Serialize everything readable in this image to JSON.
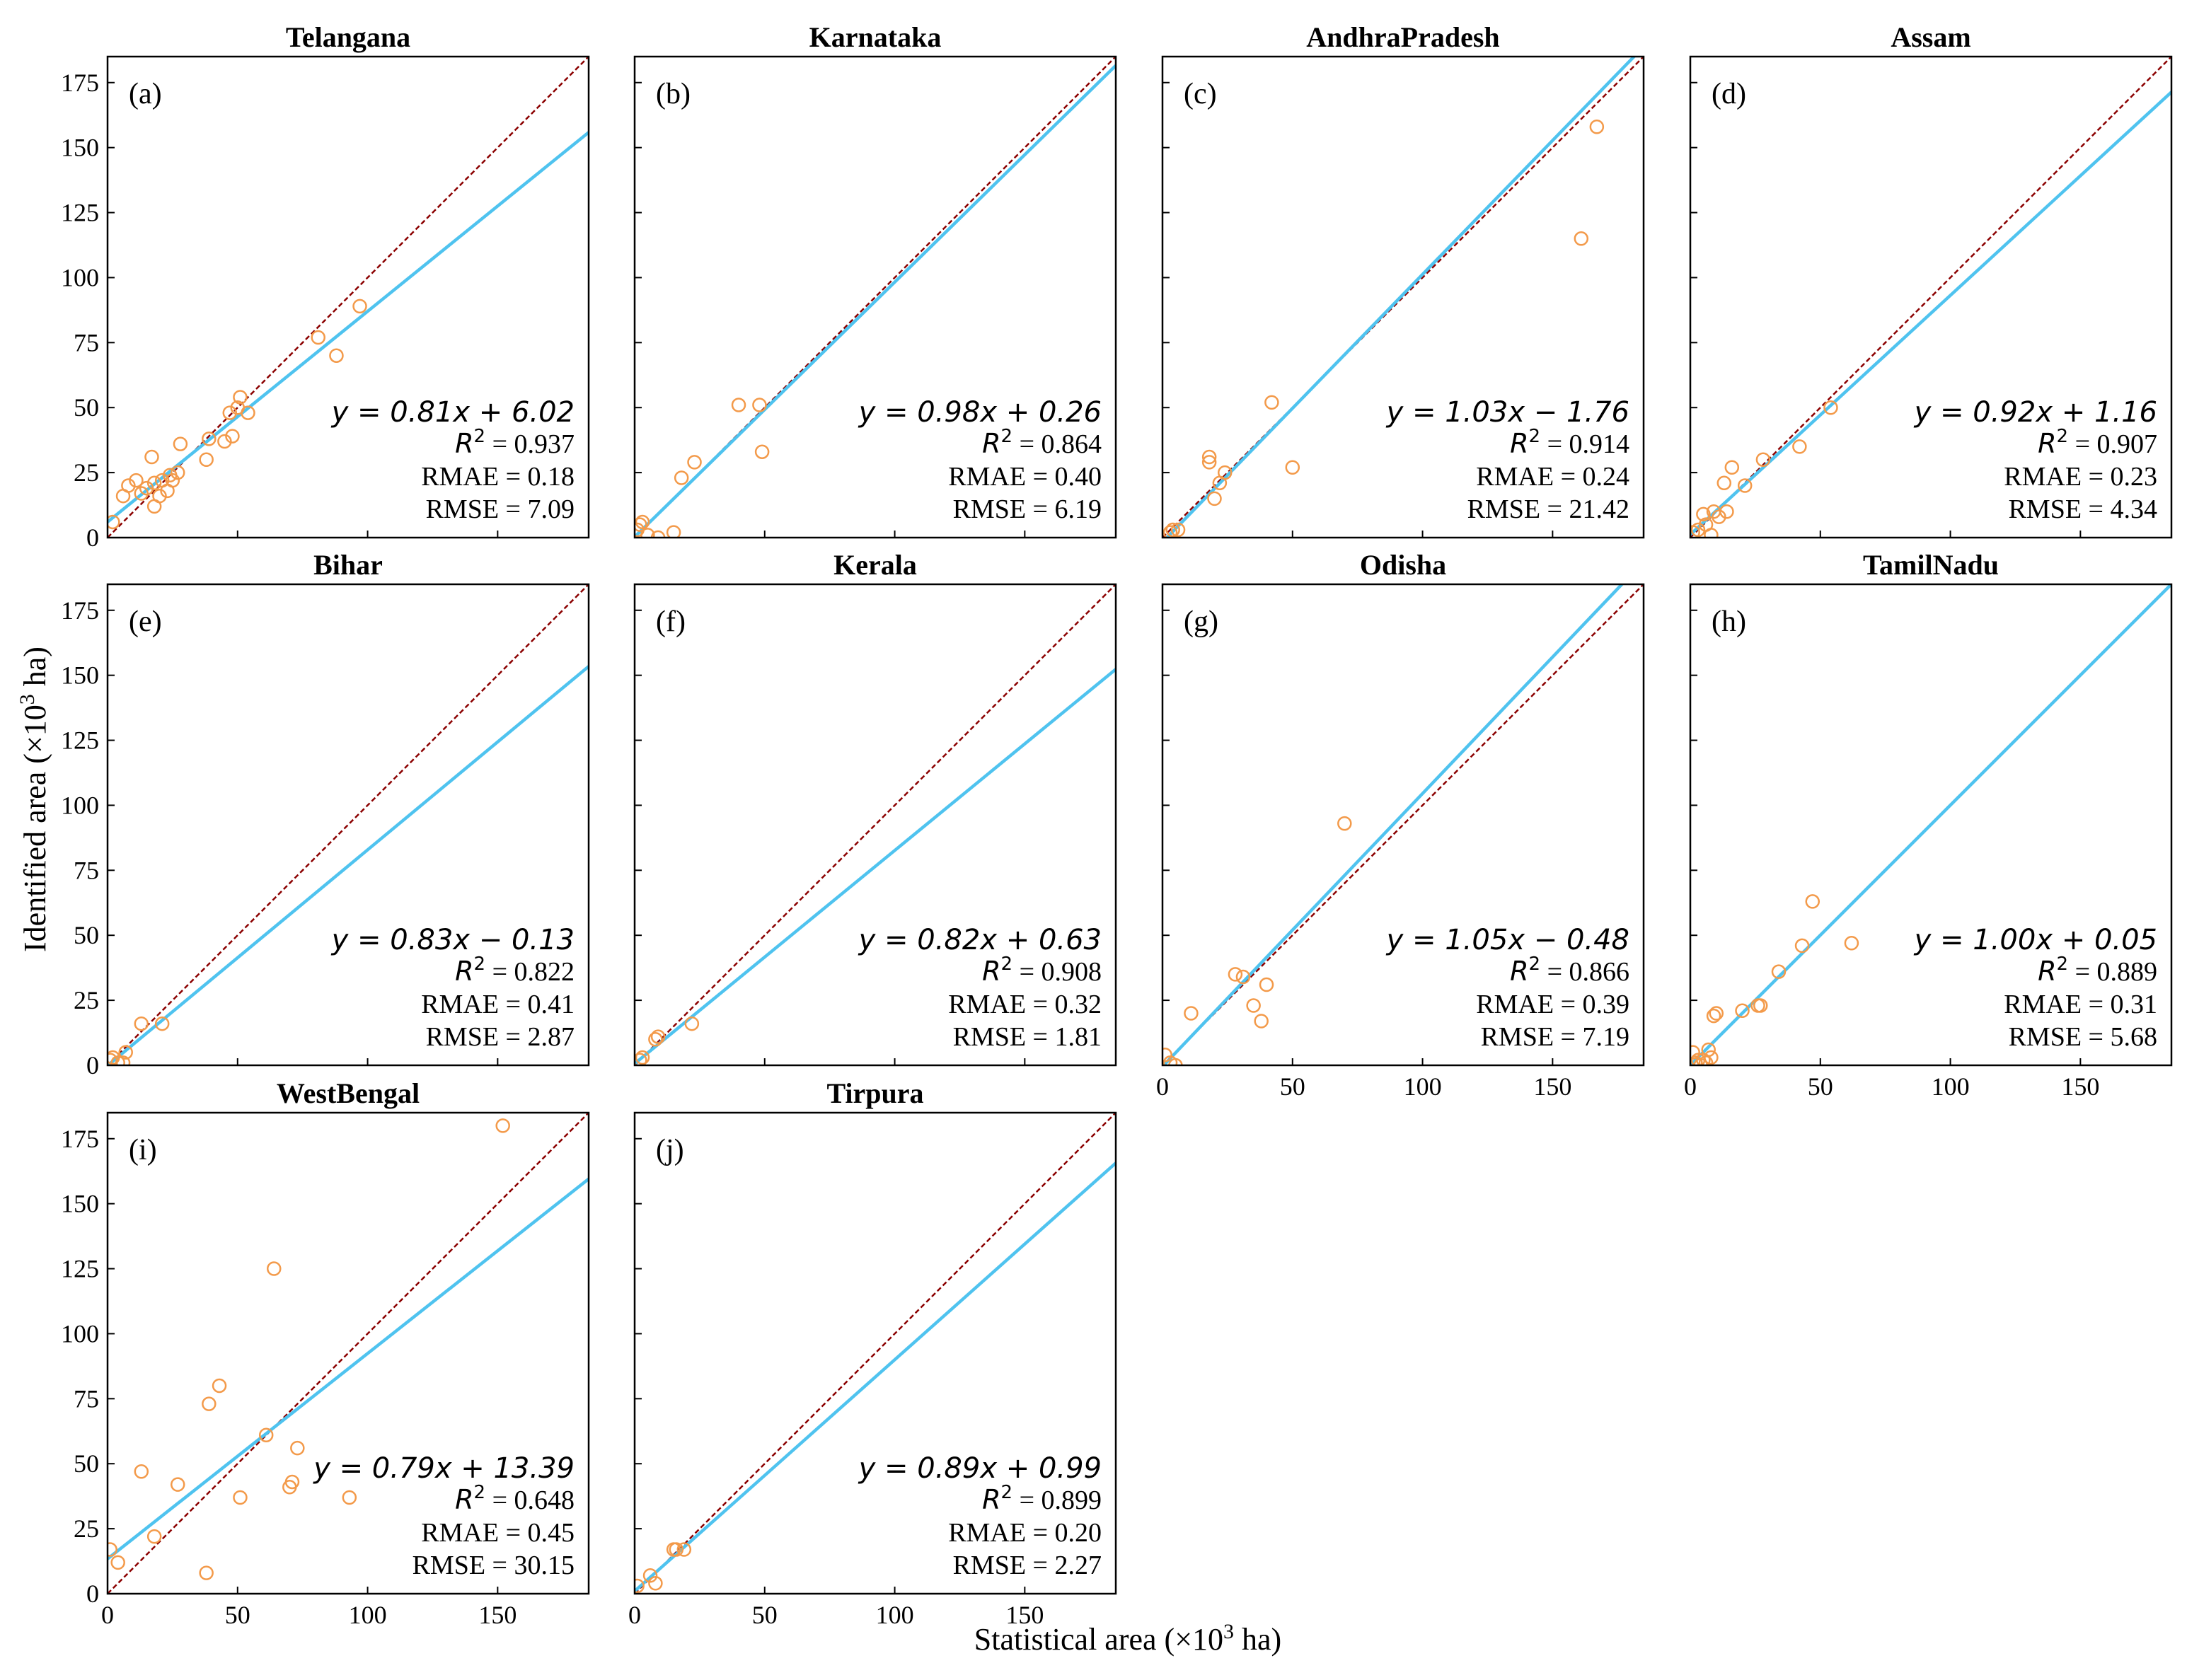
{
  "figure": {
    "xlabel": "Statistical area (×10",
    "xlabel_sup": "3",
    "xlabel_tail": " ha)",
    "ylabel": "Identified area (×10",
    "ylabel_sup": "3",
    "ylabel_tail": " ha)",
    "r2_prefix": "R",
    "r2_sup": "2"
  },
  "chart_data": [
    {
      "type": "scatter",
      "title": "Telangana",
      "panel": "(a)",
      "xlim": [
        0,
        185
      ],
      "ylim": [
        0,
        185
      ],
      "xticks": [
        0,
        50,
        100,
        150
      ],
      "yticks": [
        0,
        25,
        50,
        75,
        100,
        125,
        150,
        175
      ],
      "show_xticklabels": false,
      "show_yticklabels": true,
      "fit": {
        "slope": 0.81,
        "intercept": 6.02
      },
      "equation": "y = 0.81x + 6.02",
      "r2": "= 0.937",
      "rmae": "RMAE = 0.18",
      "rmse": "RMSE = 7.09",
      "points": [
        [
          2,
          6
        ],
        [
          6,
          16
        ],
        [
          8,
          20
        ],
        [
          11,
          22
        ],
        [
          13,
          17
        ],
        [
          15,
          19
        ],
        [
          17,
          31
        ],
        [
          18,
          12
        ],
        [
          18,
          21
        ],
        [
          20,
          16
        ],
        [
          21,
          22
        ],
        [
          23,
          18
        ],
        [
          24,
          24
        ],
        [
          25,
          22
        ],
        [
          27,
          25
        ],
        [
          28,
          36
        ],
        [
          38,
          30
        ],
        [
          39,
          38
        ],
        [
          45,
          37
        ],
        [
          47,
          48
        ],
        [
          48,
          39
        ],
        [
          50,
          50
        ],
        [
          51,
          54
        ],
        [
          54,
          48
        ],
        [
          81,
          77
        ],
        [
          88,
          70
        ],
        [
          97,
          89
        ]
      ]
    },
    {
      "type": "scatter",
      "title": "Karnataka",
      "panel": "(b)",
      "xlim": [
        0,
        185
      ],
      "ylim": [
        0,
        185
      ],
      "xticks": [
        0,
        50,
        100,
        150
      ],
      "yticks": [
        0,
        25,
        50,
        75,
        100,
        125,
        150,
        175
      ],
      "show_xticklabels": false,
      "show_yticklabels": false,
      "fit": {
        "slope": 0.98,
        "intercept": 0.26
      },
      "equation": "y = 0.98x + 0.26",
      "r2": "= 0.864",
      "rmae": "RMAE = 0.40",
      "rmse": "RMSE = 6.19",
      "points": [
        [
          1,
          3
        ],
        [
          2,
          5
        ],
        [
          3,
          6
        ],
        [
          5,
          1
        ],
        [
          9,
          0
        ],
        [
          15,
          2
        ],
        [
          18,
          23
        ],
        [
          23,
          29
        ],
        [
          40,
          51
        ],
        [
          48,
          51
        ],
        [
          49,
          33
        ]
      ]
    },
    {
      "type": "scatter",
      "title": "AndhraPradesh",
      "panel": "(c)",
      "xlim": [
        0,
        185
      ],
      "ylim": [
        0,
        185
      ],
      "xticks": [
        0,
        50,
        100,
        150
      ],
      "yticks": [
        0,
        25,
        50,
        75,
        100,
        125,
        150,
        175
      ],
      "show_xticklabels": false,
      "show_yticklabels": false,
      "fit": {
        "slope": 1.03,
        "intercept": -1.76
      },
      "equation": "y = 1.03x − 1.76",
      "r2": "= 0.914",
      "rmae": "RMAE = 0.24",
      "rmse": "RMSE = 21.42",
      "points": [
        [
          3,
          2
        ],
        [
          4,
          3
        ],
        [
          6,
          3
        ],
        [
          18,
          29
        ],
        [
          18,
          31
        ],
        [
          20,
          15
        ],
        [
          22,
          21
        ],
        [
          24,
          25
        ],
        [
          42,
          52
        ],
        [
          50,
          27
        ],
        [
          161,
          115
        ],
        [
          167,
          158
        ]
      ]
    },
    {
      "type": "scatter",
      "title": "Assam",
      "panel": "(d)",
      "xlim": [
        0,
        185
      ],
      "ylim": [
        0,
        185
      ],
      "xticks": [
        0,
        50,
        100,
        150
      ],
      "yticks": [
        0,
        25,
        50,
        75,
        100,
        125,
        150,
        175
      ],
      "show_xticklabels": false,
      "show_yticklabels": false,
      "fit": {
        "slope": 0.92,
        "intercept": 1.16
      },
      "equation": "y = 0.92x + 1.16",
      "r2": "= 0.907",
      "rmae": "RMAE = 0.23",
      "rmse": "RMSE = 4.34",
      "points": [
        [
          1,
          2
        ],
        [
          3,
          3
        ],
        [
          5,
          9
        ],
        [
          6,
          5
        ],
        [
          8,
          1
        ],
        [
          9,
          10
        ],
        [
          11,
          8
        ],
        [
          13,
          21
        ],
        [
          14,
          10
        ],
        [
          16,
          27
        ],
        [
          21,
          20
        ],
        [
          28,
          30
        ],
        [
          42,
          35
        ],
        [
          54,
          50
        ]
      ]
    },
    {
      "type": "scatter",
      "title": "Bihar",
      "panel": "(e)",
      "xlim": [
        0,
        185
      ],
      "ylim": [
        0,
        185
      ],
      "xticks": [
        0,
        50,
        100,
        150
      ],
      "yticks": [
        0,
        25,
        50,
        75,
        100,
        125,
        150,
        175
      ],
      "show_xticklabels": false,
      "show_yticklabels": true,
      "fit": {
        "slope": 0.83,
        "intercept": -0.13
      },
      "equation": "y = 0.83x − 0.13",
      "r2": "= 0.822",
      "rmae": "RMAE = 0.41",
      "rmse": "RMSE = 2.87",
      "points": [
        [
          1,
          2
        ],
        [
          2,
          3
        ],
        [
          4,
          1
        ],
        [
          6,
          1
        ],
        [
          7,
          5
        ],
        [
          13,
          16
        ],
        [
          21,
          16
        ]
      ]
    },
    {
      "type": "scatter",
      "title": "Kerala",
      "panel": "(f)",
      "xlim": [
        0,
        185
      ],
      "ylim": [
        0,
        185
      ],
      "xticks": [
        0,
        50,
        100,
        150
      ],
      "yticks": [
        0,
        25,
        50,
        75,
        100,
        125,
        150,
        175
      ],
      "show_xticklabels": false,
      "show_yticklabels": false,
      "fit": {
        "slope": 0.82,
        "intercept": 0.63
      },
      "equation": "y = 0.82x + 0.63",
      "r2": "= 0.908",
      "rmae": "RMAE = 0.32",
      "rmse": "RMSE = 1.81",
      "points": [
        [
          2,
          2
        ],
        [
          3,
          3
        ],
        [
          8,
          10
        ],
        [
          9,
          11
        ],
        [
          22,
          16
        ]
      ]
    },
    {
      "type": "scatter",
      "title": "Odisha",
      "panel": "(g)",
      "xlim": [
        0,
        185
      ],
      "ylim": [
        0,
        185
      ],
      "xticks": [
        0,
        50,
        100,
        150
      ],
      "yticks": [
        0,
        25,
        50,
        75,
        100,
        125,
        150,
        175
      ],
      "show_xticklabels": true,
      "show_yticklabels": false,
      "fit": {
        "slope": 1.05,
        "intercept": -0.48
      },
      "equation": "y = 1.05x − 0.48",
      "r2": "= 0.866",
      "rmae": "RMAE = 0.39",
      "rmse": "RMSE = 7.19",
      "points": [
        [
          1,
          4
        ],
        [
          3,
          1
        ],
        [
          5,
          0
        ],
        [
          11,
          20
        ],
        [
          28,
          35
        ],
        [
          31,
          34
        ],
        [
          35,
          23
        ],
        [
          38,
          17
        ],
        [
          40,
          31
        ],
        [
          70,
          93
        ]
      ]
    },
    {
      "type": "scatter",
      "title": "TamilNadu",
      "panel": "(h)",
      "xlim": [
        0,
        185
      ],
      "ylim": [
        0,
        185
      ],
      "xticks": [
        0,
        50,
        100,
        150
      ],
      "yticks": [
        0,
        25,
        50,
        75,
        100,
        125,
        150,
        175
      ],
      "show_xticklabels": true,
      "show_yticklabels": false,
      "fit": {
        "slope": 1.0,
        "intercept": 0.05
      },
      "equation": "y = 1.00x + 0.05",
      "r2": "= 0.889",
      "rmae": "RMAE = 0.31",
      "rmse": "RMSE = 5.68",
      "points": [
        [
          1,
          5
        ],
        [
          2,
          1
        ],
        [
          3,
          2
        ],
        [
          4,
          0
        ],
        [
          5,
          2
        ],
        [
          6,
          1
        ],
        [
          7,
          6
        ],
        [
          8,
          3
        ],
        [
          9,
          19
        ],
        [
          10,
          20
        ],
        [
          20,
          21
        ],
        [
          26,
          23
        ],
        [
          27,
          23
        ],
        [
          34,
          36
        ],
        [
          43,
          46
        ],
        [
          47,
          63
        ],
        [
          62,
          47
        ]
      ]
    },
    {
      "type": "scatter",
      "title": "WestBengal",
      "panel": "(i)",
      "xlim": [
        0,
        185
      ],
      "ylim": [
        0,
        185
      ],
      "xticks": [
        0,
        50,
        100,
        150
      ],
      "yticks": [
        0,
        25,
        50,
        75,
        100,
        125,
        150,
        175
      ],
      "show_xticklabels": true,
      "show_yticklabels": true,
      "fit": {
        "slope": 0.79,
        "intercept": 13.39
      },
      "equation": "y = 0.79x + 13.39",
      "r2": "= 0.648",
      "rmae": "RMAE = 0.45",
      "rmse": "RMSE = 30.15",
      "points": [
        [
          1,
          17
        ],
        [
          4,
          12
        ],
        [
          13,
          47
        ],
        [
          18,
          22
        ],
        [
          27,
          42
        ],
        [
          38,
          8
        ],
        [
          39,
          73
        ],
        [
          43,
          80
        ],
        [
          51,
          37
        ],
        [
          61,
          61
        ],
        [
          64,
          125
        ],
        [
          70,
          41
        ],
        [
          71,
          43
        ],
        [
          73,
          56
        ],
        [
          93,
          37
        ],
        [
          152,
          180
        ]
      ]
    },
    {
      "type": "scatter",
      "title": "Tirpura",
      "panel": "(j)",
      "xlim": [
        0,
        185
      ],
      "ylim": [
        0,
        185
      ],
      "xticks": [
        0,
        50,
        100,
        150
      ],
      "yticks": [
        0,
        25,
        50,
        75,
        100,
        125,
        150,
        175
      ],
      "show_xticklabels": true,
      "show_yticklabels": false,
      "fit": {
        "slope": 0.89,
        "intercept": 0.99
      },
      "equation": "y = 0.89x + 0.99",
      "r2": "= 0.899",
      "rmae": "RMAE = 0.20",
      "rmse": "RMSE = 2.27",
      "points": [
        [
          1,
          3
        ],
        [
          6,
          7
        ],
        [
          8,
          4
        ],
        [
          15,
          17
        ],
        [
          16,
          17
        ],
        [
          19,
          17
        ]
      ]
    }
  ],
  "colors": {
    "fit_line": "#4fc3ef",
    "identity_line": "#8b0000",
    "marker": "#f39a4a",
    "axis": "#000000"
  }
}
